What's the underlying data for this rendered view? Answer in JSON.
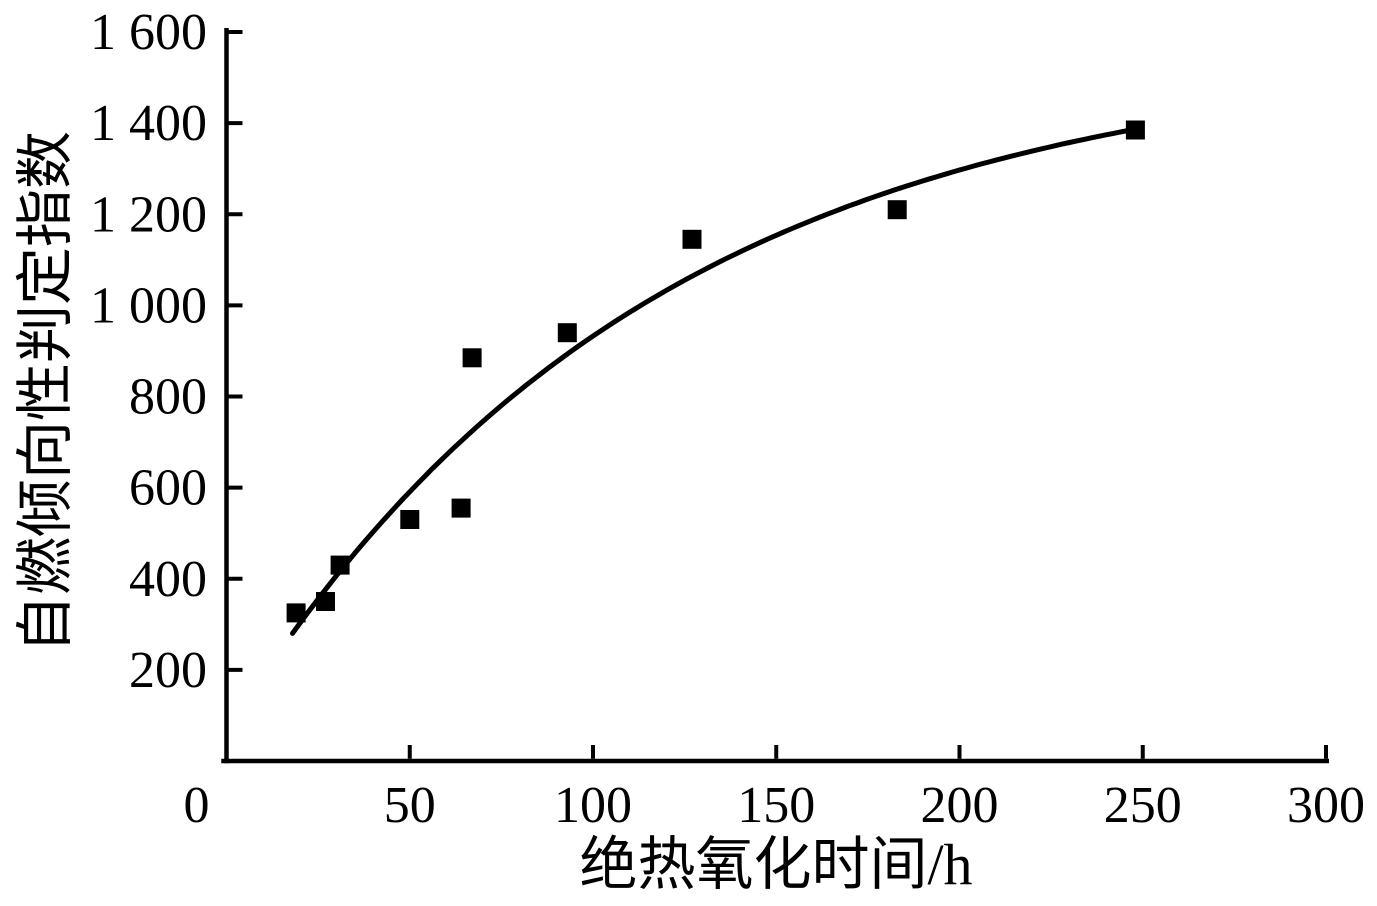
{
  "figure": {
    "background": "#ffffff",
    "ink_color": "#000000"
  },
  "chart_data": {
    "type": "scatter",
    "title": "",
    "xlabel": "绝热氧化时间/h",
    "ylabel": "自燃倾向性判定指数",
    "xlim": [
      0,
      300
    ],
    "ylim": [
      0,
      1600
    ],
    "x_ticks": [
      0,
      50,
      100,
      150,
      200,
      250,
      300
    ],
    "x_tick_labels": [
      "0",
      "50",
      "100",
      "150",
      "200",
      "250",
      "300"
    ],
    "y_ticks": [
      200,
      400,
      600,
      800,
      1000,
      1200,
      1400,
      1600
    ],
    "y_tick_labels": [
      "200",
      "400",
      "600",
      "800",
      "1 000",
      "1 200",
      "1 400",
      "1 600"
    ],
    "grid": false,
    "legend": null,
    "marker": "filled-square",
    "series": [
      {
        "name": "measured-points",
        "type": "scatter",
        "points": [
          [
            19,
            325
          ],
          [
            27,
            350
          ],
          [
            31,
            430
          ],
          [
            50,
            530
          ],
          [
            64,
            555
          ],
          [
            67,
            885
          ],
          [
            93,
            940
          ],
          [
            127,
            1145
          ],
          [
            183,
            1210
          ],
          [
            248,
            1385
          ]
        ]
      },
      {
        "name": "fit-curve",
        "type": "line",
        "model": "saturating-exponential",
        "params": {
          "y_max": 1560,
          "amplitude": 1280,
          "tau": 115,
          "x_start": 18,
          "x_end": 248
        }
      }
    ]
  }
}
